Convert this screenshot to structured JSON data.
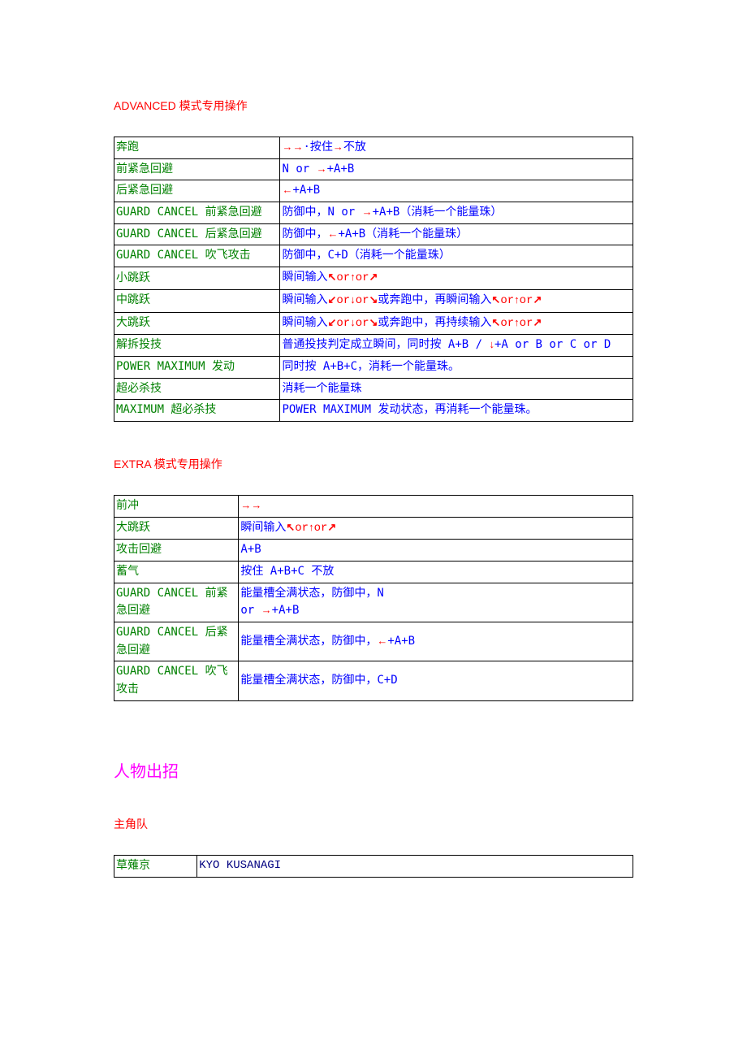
{
  "colors": {
    "heading_red": "#ff0000",
    "heading_magenta": "#ff00ff",
    "name_green": "#008000",
    "cmd_blue": "#0000ff",
    "arrow_red": "#ff0000",
    "border": "#000000",
    "char_en_navy": "#000080",
    "background": "#ffffff"
  },
  "glyphs": {
    "right": "→",
    "left": "←",
    "up": "↑",
    "down": "↓",
    "upleft": "↖",
    "upright": "↗",
    "downleft": "↙",
    "downright": "↘",
    "dot": "·"
  },
  "advanced": {
    "heading_prefix": "ADVANCED",
    "heading_suffix": "模式专用操作",
    "rows": [
      {
        "name": "奔跑",
        "cmd": [
          {
            "a": "right"
          },
          {
            "a": "right"
          },
          {
            "t": "·按住"
          },
          {
            "a": "right"
          },
          {
            "t": "不放"
          }
        ]
      },
      {
        "name": "前紧急回避",
        "cmd": [
          {
            "t": "N or  "
          },
          {
            "a": "right"
          },
          {
            "t": "+A+B"
          }
        ]
      },
      {
        "name": "后紧急回避",
        "cmd": [
          {
            "a": "left"
          },
          {
            "t": "+A+B"
          }
        ]
      },
      {
        "name": "GUARD CANCEL 前紧急回避",
        "cmd": [
          {
            "t": "防御中，N or  "
          },
          {
            "a": "right"
          },
          {
            "t": "+A+B（消耗一个能量珠）"
          }
        ]
      },
      {
        "name": "GUARD CANCEL 后紧急回避",
        "cmd": [
          {
            "t": "防御中，"
          },
          {
            "a": "left"
          },
          {
            "t": "+A+B（消耗一个能量珠）"
          }
        ]
      },
      {
        "name": "GUARD CANCEL 吹飞攻击",
        "cmd": [
          {
            "t": "防御中，C+D（消耗一个能量珠）"
          }
        ]
      },
      {
        "name": "小跳跃",
        "cmd": [
          {
            "t": "瞬间输入"
          },
          {
            "a": "upleft"
          },
          {
            "or": true
          },
          {
            "a": "up"
          },
          {
            "or": true
          },
          {
            "a": "upright"
          }
        ]
      },
      {
        "name": "中跳跃",
        "cmd": [
          {
            "t": "瞬间输入"
          },
          {
            "a": "downleft"
          },
          {
            "or": true
          },
          {
            "a": "down"
          },
          {
            "or": true
          },
          {
            "a": "downright"
          },
          {
            "t": "或奔跑中，再瞬间输入"
          },
          {
            "a": "upleft"
          },
          {
            "or": true
          },
          {
            "a": "up"
          },
          {
            "or": true
          },
          {
            "a": "upright"
          }
        ]
      },
      {
        "name": "大跳跃",
        "cmd": [
          {
            "t": "瞬间输入"
          },
          {
            "a": "downleft"
          },
          {
            "or": true
          },
          {
            "a": "down"
          },
          {
            "or": true
          },
          {
            "a": "downright"
          },
          {
            "t": "或奔跑中，再持续输入"
          },
          {
            "a": "upleft"
          },
          {
            "or": true
          },
          {
            "a": "up"
          },
          {
            "or": true
          },
          {
            "a": "upright"
          }
        ]
      },
      {
        "name": "解拆投技",
        "cmd": [
          {
            "t": "普通投技判定成立瞬间，同时按 A+B /  "
          },
          {
            "a": "down"
          },
          {
            "t": "+A or B or C or D"
          }
        ]
      },
      {
        "name": "POWER MAXIMUM 发动",
        "cmd": [
          {
            "t": "同时按 A+B+C，消耗一个能量珠。"
          }
        ]
      },
      {
        "name": "超必杀技",
        "cmd": [
          {
            "t": "消耗一个能量珠"
          }
        ]
      },
      {
        "name": "MAXIMUM 超必杀技",
        "cmd": [
          {
            "t": "POWER MAXIMUM 发动状态，再消耗一个能量珠。"
          }
        ]
      }
    ]
  },
  "extra": {
    "heading_prefix": "EXTRA",
    "heading_suffix": "模式专用操作",
    "rows": [
      {
        "name": "前冲",
        "cmd": [
          {
            "a": "right"
          },
          {
            "a": "right"
          }
        ]
      },
      {
        "name": "大跳跃",
        "cmd": [
          {
            "t": "瞬间输入"
          },
          {
            "a": "upleft"
          },
          {
            "or": true
          },
          {
            "a": "up"
          },
          {
            "or": true
          },
          {
            "a": "upright"
          }
        ]
      },
      {
        "name": "攻击回避",
        "cmd": [
          {
            "t": "A+B"
          }
        ]
      },
      {
        "name": "蓄气",
        "cmd": [
          {
            "t": "按住 A+B+C 不放"
          }
        ]
      },
      {
        "name": "GUARD CANCEL 前紧急回避",
        "cmd": [
          {
            "t": "能量槽全满状态，防御中，N"
          },
          {
            "br": true
          },
          {
            "t": "or  "
          },
          {
            "a": "right"
          },
          {
            "t": "+A+B"
          }
        ]
      },
      {
        "name": "GUARD CANCEL 后紧急回避",
        "cmd": [
          {
            "t": "能量槽全满状态，防御中，"
          },
          {
            "a": "left"
          },
          {
            "t": "+A+B"
          }
        ]
      },
      {
        "name": "GUARD CANCEL 吹飞攻击",
        "cmd": [
          {
            "t": "能量槽全满状态，防御中，C+D"
          }
        ]
      }
    ]
  },
  "characters": {
    "heading": "人物出招",
    "team_heading": "主角队",
    "row": {
      "jp": "草薙京",
      "en": "KYO KUSANAGI"
    }
  }
}
